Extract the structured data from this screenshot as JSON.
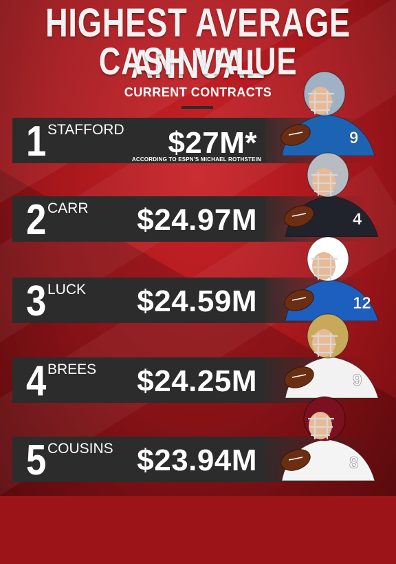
{
  "title": {
    "line1": "HIGHEST AVERAGE ANNUAL",
    "line2": "CASH VALUE"
  },
  "subtitle": "CURRENT CONTRACTS",
  "rows": [
    {
      "rank": "1",
      "name": "STAFFORD",
      "value": "$27M*",
      "footnote": "ACCORDING TO ESPN'S MICHAEL ROTHSTEIN",
      "jersey": "#1c63b3",
      "helmet": "#9fb1c4",
      "number": "9"
    },
    {
      "rank": "2",
      "name": "CARR",
      "value": "$24.97M",
      "jersey": "#20232b",
      "helmet": "#b8bcc2",
      "number": "4"
    },
    {
      "rank": "3",
      "name": "LUCK",
      "value": "$24.59M",
      "jersey": "#1d5fbf",
      "helmet": "#ffffff",
      "number": "12"
    },
    {
      "rank": "4",
      "name": "BREES",
      "value": "$24.25M",
      "jersey": "#f2f2f2",
      "helmet": "#c8a85a",
      "number": "9"
    },
    {
      "rank": "5",
      "name": "COUSINS",
      "value": "$23.94M",
      "jersey": "#f4f4f4",
      "helmet": "#7a1020",
      "number": "8"
    }
  ],
  "colors": {
    "background": "#a3161b",
    "row": "#2c2c2c",
    "text": "#ffffff"
  }
}
